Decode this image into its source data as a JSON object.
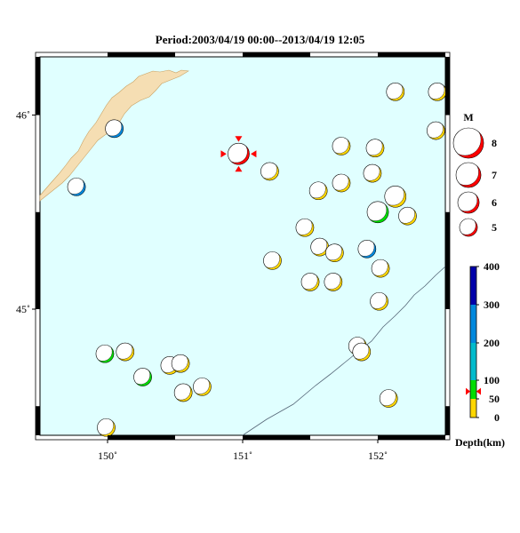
{
  "title": "Period:2003/04/19 00:00--2013/04/19 12:05",
  "map": {
    "lon_range": [
      149.5,
      152.5
    ],
    "lat_range": [
      44.35,
      46.3
    ],
    "lon_ticks": [
      {
        "value": 150,
        "label": "150˚"
      },
      {
        "value": 151,
        "label": "151˚"
      },
      {
        "value": 152,
        "label": "152˚"
      }
    ],
    "lat_ticks": [
      {
        "value": 45,
        "label": "45˚"
      },
      {
        "value": 46,
        "label": "46˚"
      }
    ],
    "colors": {
      "sea": "#e0ffff",
      "land": "#f5deb3",
      "shallow": "#ffd700",
      "mid": "#00dd00",
      "deep": "#00bbcc",
      "main": "#ff0000"
    }
  },
  "events": [
    {
      "lon": 150.05,
      "lat": 45.93,
      "mag": 5,
      "depth": 200
    },
    {
      "lon": 149.77,
      "lat": 45.63,
      "mag": 5,
      "depth": 200
    },
    {
      "lon": 150.97,
      "lat": 45.8,
      "mag": 6,
      "depth": 70,
      "main": true
    },
    {
      "lon": 151.2,
      "lat": 45.71,
      "mag": 5,
      "depth": 10
    },
    {
      "lon": 152.13,
      "lat": 46.12,
      "mag": 5,
      "depth": 10
    },
    {
      "lon": 152.44,
      "lat": 46.12,
      "mag": 5,
      "depth": 10
    },
    {
      "lon": 152.43,
      "lat": 45.92,
      "mag": 5,
      "depth": 10
    },
    {
      "lon": 151.73,
      "lat": 45.84,
      "mag": 5,
      "depth": 10
    },
    {
      "lon": 151.98,
      "lat": 45.83,
      "mag": 5,
      "depth": 10
    },
    {
      "lon": 151.96,
      "lat": 45.7,
      "mag": 5,
      "depth": 10
    },
    {
      "lon": 151.73,
      "lat": 45.65,
      "mag": 5,
      "depth": 10
    },
    {
      "lon": 151.56,
      "lat": 45.61,
      "mag": 5,
      "depth": 10
    },
    {
      "lon": 152.13,
      "lat": 45.58,
      "mag": 6,
      "depth": 10
    },
    {
      "lon": 152.0,
      "lat": 45.5,
      "mag": 6,
      "depth": 70
    },
    {
      "lon": 152.22,
      "lat": 45.48,
      "mag": 5,
      "depth": 10
    },
    {
      "lon": 151.46,
      "lat": 45.42,
      "mag": 5,
      "depth": 10
    },
    {
      "lon": 151.57,
      "lat": 45.32,
      "mag": 5,
      "depth": 10
    },
    {
      "lon": 151.68,
      "lat": 45.29,
      "mag": 5,
      "depth": 10
    },
    {
      "lon": 151.92,
      "lat": 45.31,
      "mag": 5,
      "depth": 200
    },
    {
      "lon": 151.22,
      "lat": 45.25,
      "mag": 5,
      "depth": 10
    },
    {
      "lon": 152.02,
      "lat": 45.21,
      "mag": 5,
      "depth": 10
    },
    {
      "lon": 151.5,
      "lat": 45.14,
      "mag": 5,
      "depth": 10
    },
    {
      "lon": 151.67,
      "lat": 45.14,
      "mag": 5,
      "depth": 10
    },
    {
      "lon": 152.01,
      "lat": 45.04,
      "mag": 5,
      "depth": 10
    },
    {
      "lon": 149.98,
      "lat": 44.77,
      "mag": 5,
      "depth": 70
    },
    {
      "lon": 150.13,
      "lat": 44.78,
      "mag": 5,
      "depth": 10
    },
    {
      "lon": 151.85,
      "lat": 44.81,
      "mag": 5,
      "depth": 10
    },
    {
      "lon": 151.88,
      "lat": 44.78,
      "mag": 5,
      "depth": 10
    },
    {
      "lon": 150.46,
      "lat": 44.71,
      "mag": 5,
      "depth": 10
    },
    {
      "lon": 150.54,
      "lat": 44.72,
      "mag": 5,
      "depth": 10
    },
    {
      "lon": 150.26,
      "lat": 44.65,
      "mag": 5,
      "depth": 70
    },
    {
      "lon": 150.7,
      "lat": 44.6,
      "mag": 5,
      "depth": 10
    },
    {
      "lon": 150.56,
      "lat": 44.57,
      "mag": 5,
      "depth": 10
    },
    {
      "lon": 152.08,
      "lat": 44.54,
      "mag": 5,
      "depth": 10
    },
    {
      "lon": 149.99,
      "lat": 44.39,
      "mag": 5,
      "depth": 10
    }
  ],
  "legend": {
    "mag_title": "M",
    "mags": [
      {
        "value": 8,
        "label": "8"
      },
      {
        "value": 7,
        "label": "7"
      },
      {
        "value": 6,
        "label": "6"
      },
      {
        "value": 5,
        "label": "5"
      }
    ],
    "depth_title": "Depth(km)",
    "depth_ticks": [
      {
        "value": 0,
        "label": "0"
      },
      {
        "value": 50,
        "label": "50"
      },
      {
        "value": 100,
        "label": "100"
      },
      {
        "value": 200,
        "label": "200"
      },
      {
        "value": 300,
        "label": "300"
      },
      {
        "value": 400,
        "label": "400"
      }
    ],
    "depth_bands": [
      {
        "from": 0,
        "to": 50,
        "color": "#ffd700"
      },
      {
        "from": 50,
        "to": 100,
        "color": "#00dd00"
      },
      {
        "from": 100,
        "to": 200,
        "color": "#00bbcc"
      },
      {
        "from": 200,
        "to": 300,
        "color": "#0088dd"
      },
      {
        "from": 300,
        "to": 400,
        "color": "#0000aa"
      }
    ],
    "marker_depth": 70
  }
}
